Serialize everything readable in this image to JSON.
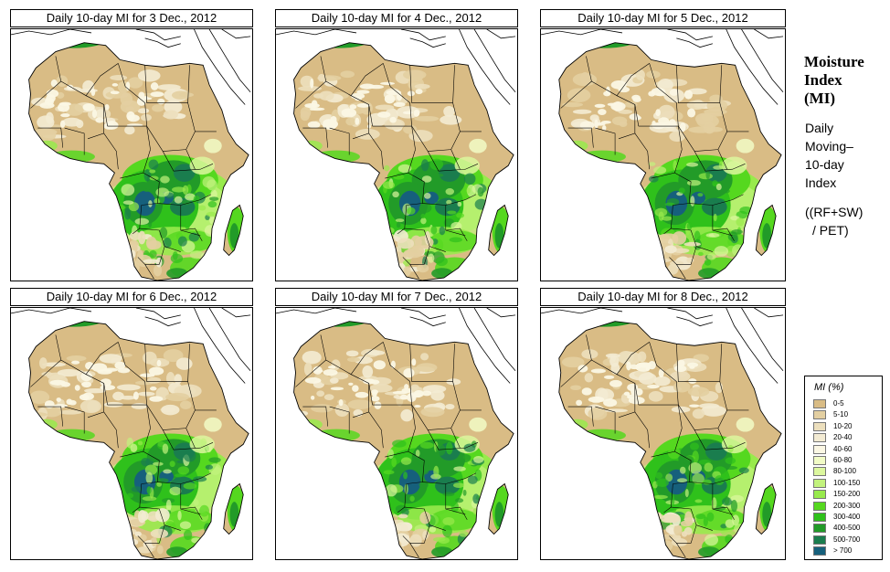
{
  "panels": [
    {
      "title": "Daily 10-day MI for  3 Dec., 2012",
      "date": "3 Dec., 2012"
    },
    {
      "title": "Daily 10-day MI for  4 Dec., 2012",
      "date": "4 Dec., 2012"
    },
    {
      "title": "Daily 10-day MI for  5 Dec., 2012",
      "date": "5 Dec., 2012"
    },
    {
      "title": "Daily 10-day MI for  6 Dec., 2012",
      "date": "6 Dec., 2012"
    },
    {
      "title": "Daily 10-day MI for  7 Dec., 2012",
      "date": "7 Dec., 2012"
    },
    {
      "title": "Daily 10-day MI for  8 Dec., 2012",
      "date": "8 Dec., 2012"
    }
  ],
  "side": {
    "title_line1": "Moisture",
    "title_line2": "Index",
    "title_line3": "(MI)",
    "desc_line1": "Daily",
    "desc_line2": "Moving–",
    "desc_line3": "10-day",
    "desc_line4": "Index",
    "formula_line1": "((RF+SW)",
    "formula_line2": "/ PET)"
  },
  "legend": {
    "title": "MI (%)",
    "classes": [
      {
        "label": "0-5",
        "color": "#d9bc85"
      },
      {
        "label": "5-10",
        "color": "#e3cfa1"
      },
      {
        "label": "10-20",
        "color": "#ecdfbd"
      },
      {
        "label": "20-40",
        "color": "#f3ebd3"
      },
      {
        "label": "40-60",
        "color": "#fbf7e4"
      },
      {
        "label": "60-80",
        "color": "#f1fbc6"
      },
      {
        "label": "80-100",
        "color": "#dcf79e"
      },
      {
        "label": "100-150",
        "color": "#c2f27d"
      },
      {
        "label": "150-200",
        "color": "#98ea4c"
      },
      {
        "label": "200-300",
        "color": "#55d81f"
      },
      {
        "label": "300-400",
        "color": "#2fc11b"
      },
      {
        "label": "400-500",
        "color": "#229b28"
      },
      {
        "label": "500-700",
        "color": "#1a7d4e"
      },
      {
        "label": "> 700",
        "color": "#16607c"
      }
    ]
  }
}
